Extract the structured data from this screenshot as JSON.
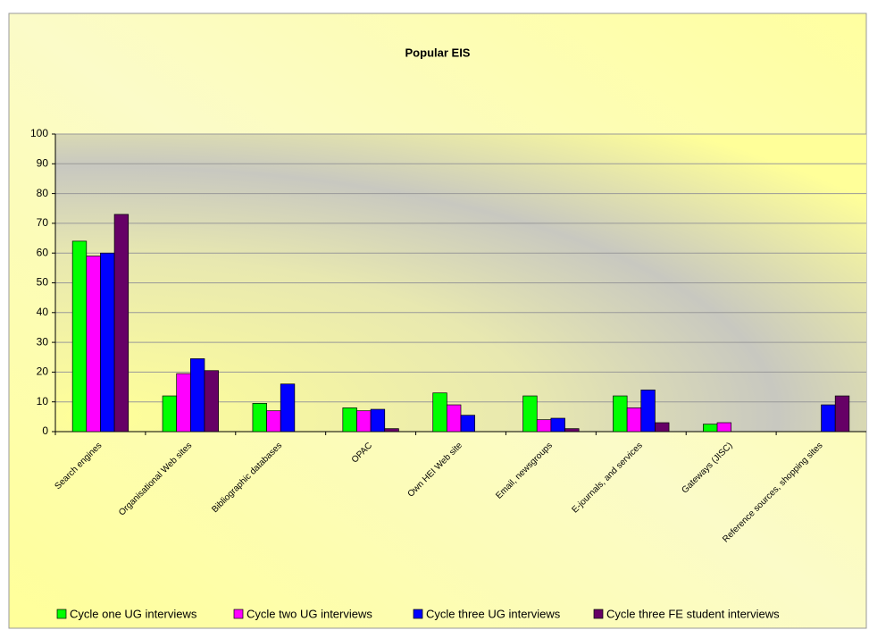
{
  "chart_data": {
    "type": "bar",
    "title": "Popular EIS",
    "categories": [
      "Search engines",
      "Organisational Web sites",
      "Bibliographic databases",
      "OPAC",
      "Own HEI Web site",
      "Email, newsgroups",
      "E-journals, and services",
      "Gateways (JISC)",
      "Reference sources, shopping sites"
    ],
    "series": [
      {
        "name": "Cycle one UG  interviews",
        "color": "#00ff00",
        "values": [
          64,
          12,
          9.5,
          8,
          13,
          12,
          12,
          2.5,
          0
        ]
      },
      {
        "name": "Cycle two UG interviews",
        "color": "#ff00ff",
        "values": [
          59,
          19.5,
          7,
          7,
          9,
          4,
          8,
          3,
          0
        ]
      },
      {
        "name": "Cycle three UG interviews",
        "color": "#0000ff",
        "values": [
          60,
          24.5,
          16,
          7.5,
          5.5,
          4.5,
          14,
          0,
          9
        ]
      },
      {
        "name": "Cycle three FE student interviews",
        "color": "#660066",
        "values": [
          73,
          20.5,
          0,
          1,
          0,
          1,
          3,
          0,
          12
        ]
      }
    ],
    "ylim": [
      0,
      100
    ],
    "yticks": [
      0,
      10,
      20,
      30,
      40,
      50,
      60,
      70,
      80,
      90,
      100
    ],
    "grid": true,
    "legend": "bottom"
  }
}
